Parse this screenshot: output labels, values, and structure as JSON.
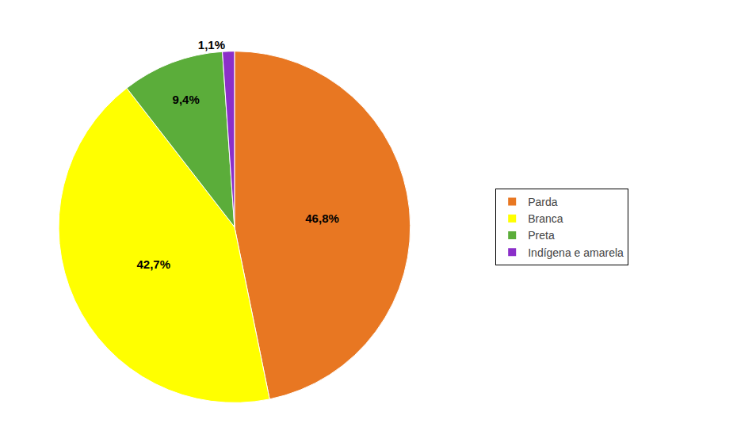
{
  "chart_data": {
    "type": "pie",
    "categories": [
      "Parda",
      "Branca",
      "Preta",
      "Indígena e amarela"
    ],
    "values": [
      46.8,
      42.7,
      9.4,
      1.1
    ],
    "value_labels": [
      "46,8%",
      "42,7%",
      "9,4%",
      "1,1%"
    ],
    "colors": [
      "#E87722",
      "#FFFF00",
      "#5BAD3A",
      "#8B2FC9"
    ],
    "data_labels": true,
    "legend": "right"
  }
}
